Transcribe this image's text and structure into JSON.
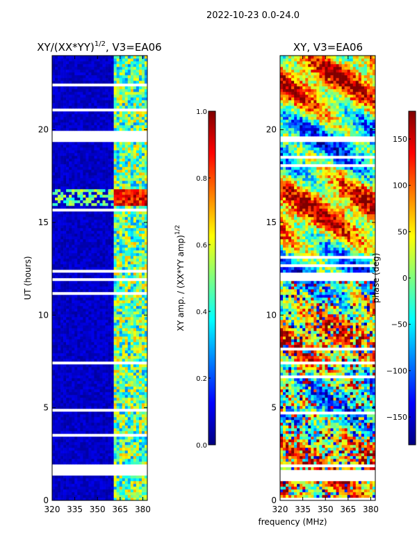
{
  "figure": {
    "suptitle": "2022-10-23 0.0-24.0",
    "xlabel": "frequency (MHz)"
  },
  "colors": {
    "jet_stops": [
      "#00007f",
      "#0000ff",
      "#007fff",
      "#00ffff",
      "#7fff7f",
      "#ffff00",
      "#ff7f00",
      "#ff0000",
      "#7f0000"
    ]
  },
  "chart_data": [
    {
      "type": "heatmap",
      "title_base": "XY/(XX*YY)",
      "title_exp": "1/2",
      "title_suffix": ", V3=EA06",
      "xlabel": "",
      "ylabel": "UT (hours)",
      "xlim": [
        320,
        383
      ],
      "ylim": [
        0,
        24
      ],
      "xticks": [
        320,
        335,
        350,
        365,
        380
      ],
      "yticks": [
        0,
        5,
        10,
        15,
        20
      ],
      "colorbar": {
        "label_base": "XY amp. / (XX*YY amp)",
        "label_exp": "1/2",
        "range": [
          0.0,
          1.0
        ],
        "ticks": [
          "0.0",
          "0.2",
          "0.4",
          "0.6",
          "0.8",
          "1.0"
        ],
        "tick_values": [
          0.0,
          0.2,
          0.4,
          0.6,
          0.8,
          1.0
        ]
      },
      "bright_band_mhz": [
        360,
        383
      ],
      "flare_hours": [
        15.9,
        16.8
      ],
      "data_gaps_hours": [
        [
          1.4,
          1.9
        ],
        [
          19.3,
          20.0
        ]
      ]
    },
    {
      "type": "heatmap",
      "title_base": "XY, V3=EA06",
      "title_exp": "",
      "title_suffix": "",
      "xlabel": "frequency (MHz)",
      "ylabel": "",
      "xlim": [
        320,
        383
      ],
      "ylim": [
        0,
        24
      ],
      "xticks": [
        320,
        335,
        350,
        365,
        380
      ],
      "yticks": [
        0,
        5,
        10,
        15,
        20
      ],
      "colorbar": {
        "label_base": "phase (deg)",
        "label_exp": "",
        "range": [
          -180,
          180
        ],
        "ticks": [
          "150",
          "100",
          "50",
          "0",
          "−50",
          "−100",
          "−150"
        ],
        "tick_values": [
          150,
          100,
          50,
          0,
          -50,
          -100,
          -150
        ]
      },
      "data_gaps_hours": [
        [
          1.4,
          1.5
        ],
        [
          19.3,
          19.6
        ]
      ]
    }
  ]
}
